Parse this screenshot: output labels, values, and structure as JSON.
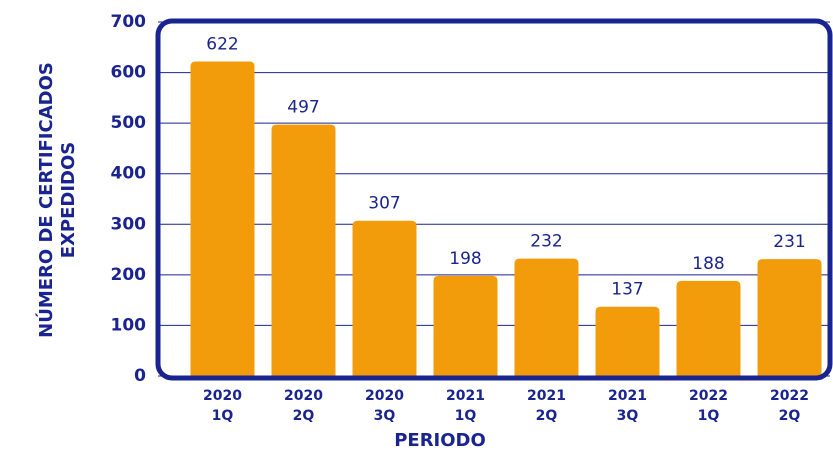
{
  "chart_data": {
    "type": "bar",
    "x_label": "PERIODO",
    "y_label": [
      "NÚMERO DE CERTIFICADOS",
      "EXPEDIDOS"
    ],
    "categories": [
      [
        "2020",
        "1Q"
      ],
      [
        "2020",
        "2Q"
      ],
      [
        "2020",
        "3Q"
      ],
      [
        "2021",
        "1Q"
      ],
      [
        "2021",
        "2Q"
      ],
      [
        "2021",
        "3Q"
      ],
      [
        "2022",
        "1Q"
      ],
      [
        "2022",
        "2Q"
      ]
    ],
    "values": [
      622,
      497,
      307,
      198,
      232,
      137,
      188,
      231
    ],
    "color": "#f29c0c",
    "ylim": [
      0,
      700
    ],
    "yticks": [
      0,
      100,
      200,
      300,
      400,
      500,
      600,
      700
    ],
    "grid": true
  }
}
